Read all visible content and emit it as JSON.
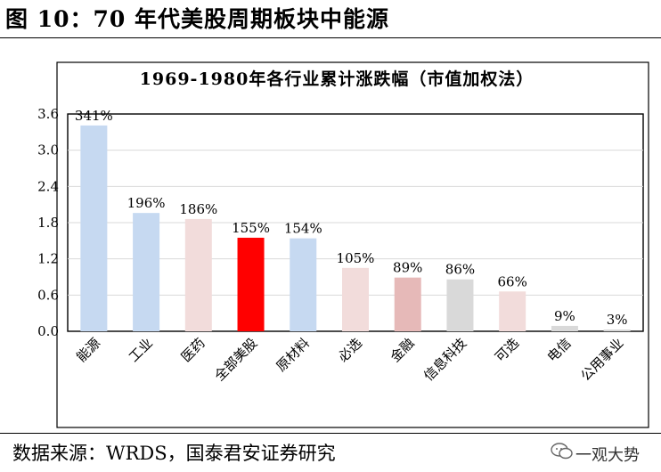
{
  "page": {
    "figure_title": "图 10：70 年代美股周期板块中能源",
    "source": "数据来源：WRDS，国泰君安证券研究",
    "watermark": "一观大势"
  },
  "chart_data": {
    "type": "bar",
    "title": "1969-1980年各行业累计涨跌幅（市值加权法）",
    "categories": [
      "能源",
      "工业",
      "医药",
      "全部美股",
      "原材料",
      "必选",
      "金融",
      "信息科技",
      "可选",
      "电信",
      "公用事业"
    ],
    "values": [
      3.41,
      1.96,
      1.86,
      1.55,
      1.54,
      1.05,
      0.89,
      0.86,
      0.66,
      0.09,
      0.03
    ],
    "data_labels": [
      "341%",
      "196%",
      "186%",
      "155%",
      "154%",
      "105%",
      "89%",
      "86%",
      "66%",
      "9%",
      "3%"
    ],
    "colors": [
      "#c6d9f1",
      "#c6d9f1",
      "#f2dcdb",
      "#ff0000",
      "#c6d9f1",
      "#f2dcdb",
      "#e6b9b8",
      "#d9d9d9",
      "#f2dcdb",
      "#d9d9d9",
      "#d9d9d9"
    ],
    "y_ticks": [
      "0.0",
      "0.6",
      "1.2",
      "1.8",
      "2.4",
      "3.0",
      "3.6"
    ],
    "ylim": [
      0,
      3.6
    ],
    "grid": true,
    "legend": "none"
  }
}
